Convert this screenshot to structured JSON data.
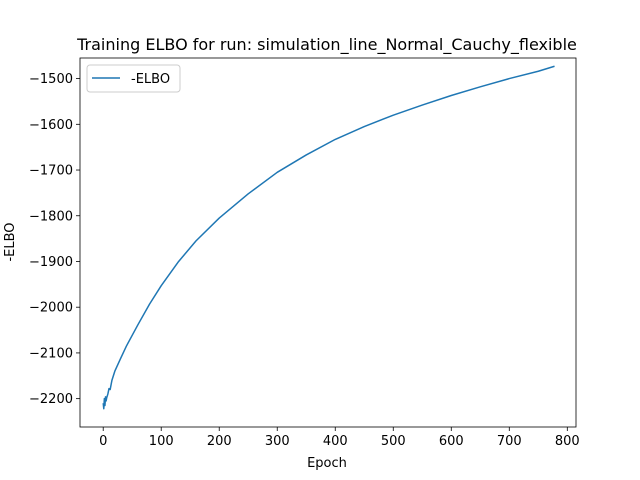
{
  "chart_data": {
    "type": "line",
    "title": "Training ELBO for run: simulation_line_Normal_Cauchy_flexible",
    "xlabel": "Epoch",
    "ylabel": "-ELBO",
    "xlim": [
      -40,
      815
    ],
    "ylim": [
      -2262,
      -1455
    ],
    "xticks": [
      0,
      100,
      200,
      300,
      400,
      500,
      600,
      700,
      800
    ],
    "yticks": [
      -2200,
      -2100,
      -2000,
      -1900,
      -1800,
      -1700,
      -1600,
      -1500
    ],
    "legend": "upper-left",
    "grid": false,
    "series": [
      {
        "name": "-ELBO",
        "color": "#1f77b4",
        "x": [
          0,
          1,
          2,
          3,
          4,
          5,
          6,
          8,
          10,
          12,
          15,
          20,
          30,
          40,
          60,
          80,
          100,
          130,
          160,
          200,
          250,
          300,
          350,
          400,
          450,
          500,
          550,
          600,
          650,
          700,
          750,
          778
        ],
        "y": [
          -2210,
          -2222,
          -2200,
          -2215,
          -2196,
          -2205,
          -2198,
          -2190,
          -2178,
          -2180,
          -2160,
          -2140,
          -2112,
          -2085,
          -2038,
          -1993,
          -1953,
          -1900,
          -1855,
          -1805,
          -1752,
          -1705,
          -1667,
          -1633,
          -1605,
          -1580,
          -1558,
          -1537,
          -1518,
          -1500,
          -1484,
          -1473
        ]
      }
    ]
  }
}
